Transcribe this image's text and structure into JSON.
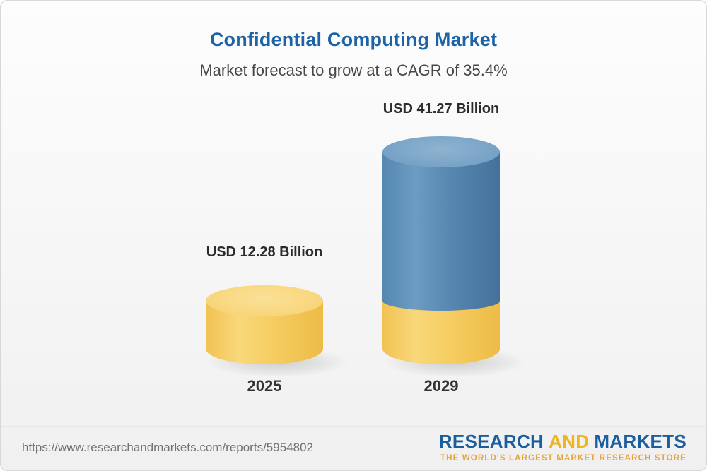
{
  "header": {
    "title": "Confidential Computing Market",
    "subtitle": "Market forecast to grow at a CAGR of 35.4%"
  },
  "chart_data": {
    "type": "bar",
    "title": "Confidential Computing Market",
    "subtitle": "Market forecast to grow at a CAGR of 35.4%",
    "categories": [
      "2025",
      "2029"
    ],
    "values": [
      12.28,
      41.27
    ],
    "value_labels": [
      "USD 12.28 Billion",
      "USD 41.27 Billion"
    ],
    "unit": "USD Billion",
    "cagr_pct": 35.4,
    "legend": "none",
    "grid": false,
    "colors": {
      "bar_2025": "#F5C95E",
      "bar_2029": "#4E7FA8",
      "bar_2029_base_segment": "#F5C95E"
    }
  },
  "footer": {
    "url": "https://www.researchandmarkets.com/reports/5954802",
    "logo": {
      "part1": "RESEARCH",
      "part2": "AND",
      "part3": "MARKETS",
      "tagline": "THE WORLD'S LARGEST MARKET RESEARCH STORE"
    },
    "colors": {
      "logo_blue": "#1B5E9E",
      "logo_gold": "#F0B41C",
      "tagline_gold": "#E7A33B"
    }
  }
}
